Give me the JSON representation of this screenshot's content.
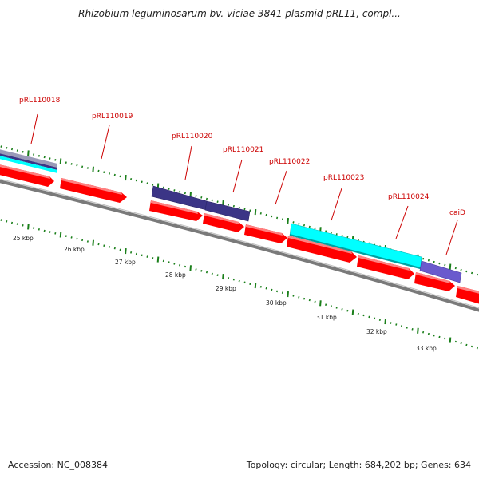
{
  "title": "Rhizobium leguminosarum bv. viciae 3841 plasmid pRL11, compl...",
  "footer": {
    "accession": "Accession: NC_008384",
    "summary": "Topology: circular; Length: 684,202 bp; Genes: 634"
  },
  "colors": {
    "cds": "#ff0000",
    "cds_highlight": "#ff8080",
    "feature_dark": "#3b3586",
    "feature_cyan": "#00ffff",
    "feature_violet": "#6a5acd",
    "tick": "#1a7f1a",
    "backbone": "#7a7a7a",
    "label": "#cc0000"
  },
  "gene_labels": [
    "pRL110018",
    "pRL110019",
    "pRL110020",
    "pRL110021",
    "pRL110022",
    "pRL110023",
    "pRL110024",
    "caiD"
  ],
  "scale_labels": [
    "25 kbp",
    "26 kbp",
    "27 kbp",
    "28 kbp",
    "29 kbp",
    "30 kbp",
    "31 kbp",
    "32 kbp",
    "33 kbp"
  ]
}
